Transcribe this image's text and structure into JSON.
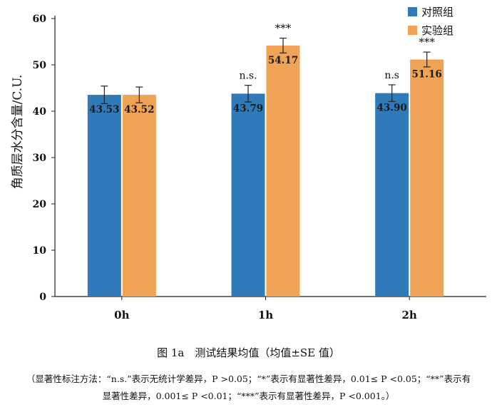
{
  "chart_data": {
    "type": "bar",
    "ylabel": "角质层水分含量/C.U.",
    "ylim": [
      0,
      60
    ],
    "yticks": [
      0,
      10,
      20,
      30,
      40,
      50,
      60
    ],
    "categories": [
      "0h",
      "1h",
      "2h"
    ],
    "series": [
      {
        "name": "对照组",
        "color": "#2f7ab9",
        "values": [
          43.53,
          43.79,
          43.9
        ],
        "value_labels": [
          "43.53",
          "43.79",
          "43.90"
        ],
        "errors": [
          1.9,
          1.8,
          1.8
        ],
        "annotations": [
          "",
          "n.s.",
          "n.s"
        ]
      },
      {
        "name": "实验组",
        "color": "#f0a255",
        "values": [
          43.52,
          54.17,
          51.16
        ],
        "value_labels": [
          "43.52",
          "54.17",
          "51.16"
        ],
        "errors": [
          1.7,
          1.6,
          1.6
        ],
        "annotations": [
          "",
          "***",
          "***"
        ]
      }
    ],
    "legend_position": "top-right"
  },
  "caption": {
    "title": "图 1a　测试结果均值（均值±SE 值）",
    "note_line1": "（显著性标注方法：“n.s.”表示无统计学差异，P >0.05；“*”表示有显著性差异，0.01≤ P <0.05；“**”表示有",
    "note_line2": "显著性差异，0.001≤ P <0.01；“***”表示有显著性差异，P <0.001。）"
  }
}
